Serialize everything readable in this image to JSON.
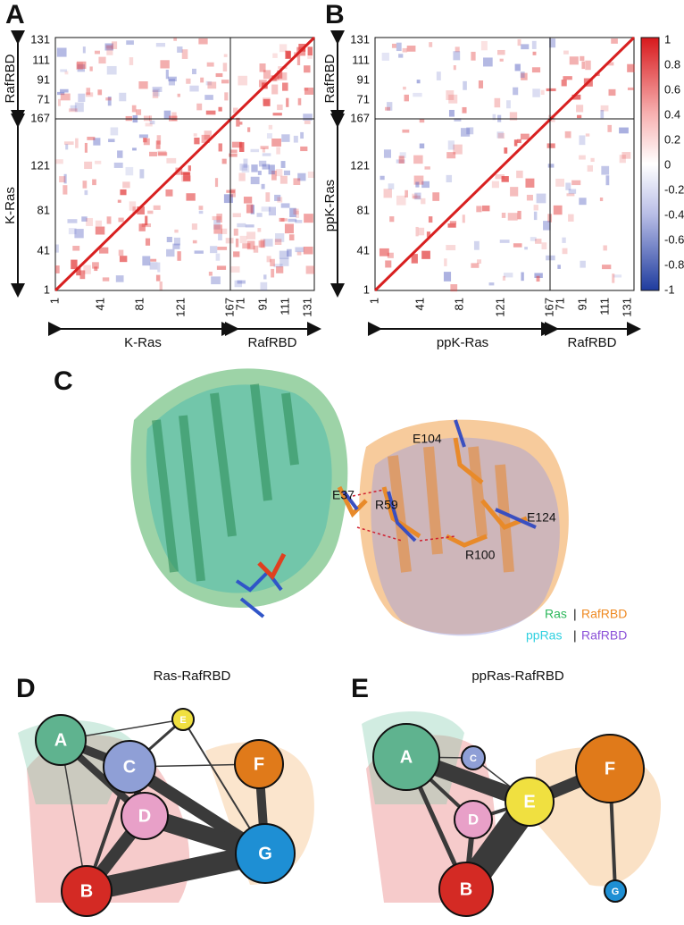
{
  "panels": {
    "a": {
      "label": "A",
      "y_label_top": "RafRBD",
      "y_label_bottom": "K-Ras",
      "x_label_left": "K-Ras",
      "x_label_right": "RafRBD",
      "ras_ticks": [
        "1",
        "41",
        "81",
        "121",
        "167"
      ],
      "rbd_ticks": [
        "71",
        "91",
        "111",
        "131"
      ]
    },
    "b": {
      "label": "B",
      "y_label_top": "RafRBD",
      "y_label_bottom": "ppK-Ras",
      "x_label_left": "ppK-Ras",
      "x_label_right": "RafRBD",
      "ras_ticks": [
        "1",
        "41",
        "81",
        "121",
        "167"
      ],
      "rbd_ticks": [
        "71",
        "91",
        "111",
        "131"
      ]
    },
    "colorbar": {
      "ticks": [
        "1",
        "0.8",
        "0.6",
        "0.4",
        "0.2",
        "0",
        "-0.2",
        "-0.4",
        "-0.6",
        "-0.8",
        "-1"
      ]
    },
    "c": {
      "label": "C",
      "residues": [
        "E104",
        "E37",
        "R59",
        "E124",
        "R100"
      ],
      "legend": [
        [
          "Ras",
          "|",
          "RafRBD"
        ],
        [
          "ppRas",
          "|",
          "RafRBD"
        ]
      ]
    },
    "d": {
      "label": "D",
      "title": "Ras-RafRBD",
      "nodes": [
        "A",
        "C",
        "E",
        "F",
        "D",
        "G",
        "B"
      ]
    },
    "e": {
      "label": "E",
      "title": "ppRas-RafRBD",
      "nodes": [
        "A",
        "C",
        "E",
        "F",
        "D",
        "B",
        "G"
      ]
    }
  }
}
